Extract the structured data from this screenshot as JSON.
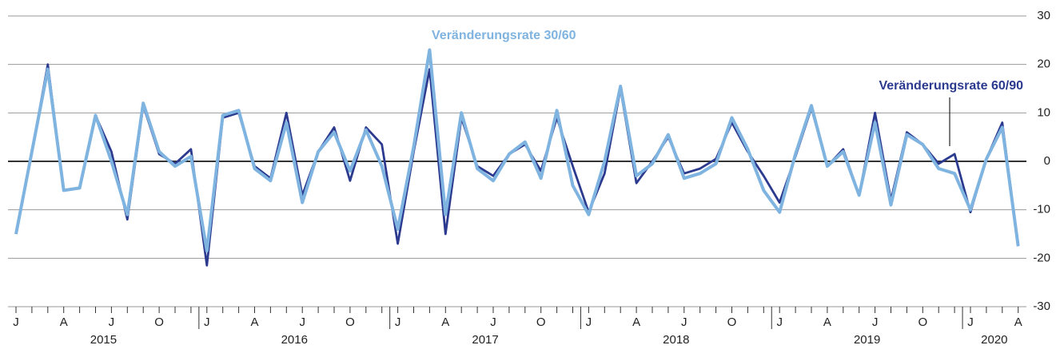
{
  "chart_data": {
    "type": "line",
    "categories": [
      "J",
      null,
      null,
      "A",
      null,
      null,
      "J",
      null,
      null,
      "O",
      null,
      null,
      "J",
      null,
      null,
      "A",
      null,
      null,
      "J",
      null,
      null,
      "O",
      null,
      null,
      "J",
      null,
      null,
      "A",
      null,
      null,
      "J",
      null,
      null,
      "O",
      null,
      null,
      "J",
      null,
      null,
      "A",
      null,
      null,
      "J",
      null,
      null,
      "O",
      null,
      null,
      "J",
      null,
      null,
      "A",
      null,
      null,
      "J",
      null,
      null,
      "O",
      null,
      null,
      "J",
      null,
      null,
      "A"
    ],
    "year_labels": [
      "2015",
      "2016",
      "2017",
      "2018",
      "2019",
      "2020"
    ],
    "series": [
      {
        "name": "Veränderungsrate 60/90",
        "color": "#2b3a8f",
        "values": [
          -15,
          2,
          20,
          -6,
          -5.5,
          9.5,
          2,
          -12,
          11.5,
          1.5,
          -0.5,
          2.5,
          -21.5,
          9,
          10,
          -1,
          -3.5,
          10,
          -7,
          2,
          7,
          -4,
          7,
          3.5,
          -17,
          2,
          19,
          -15,
          9,
          -1,
          -3,
          1.5,
          3.5,
          -2,
          9,
          -1,
          -10.5,
          -2.5,
          15,
          -4.5,
          0,
          5,
          -2.5,
          -1.5,
          0.5,
          8,
          2,
          -3,
          -8.5,
          1,
          11,
          -1,
          2.5,
          -7,
          10,
          -8,
          6,
          3.5,
          -0.5,
          1.5,
          -10.5,
          0.5,
          8,
          -17.5
        ]
      },
      {
        "name": "Veränderungsrate 30/60",
        "color": "#7fb3e0",
        "values": [
          -15,
          2,
          19,
          -6,
          -5.5,
          9.5,
          0,
          -11,
          12,
          2,
          -1,
          1,
          -18.5,
          9.5,
          10.5,
          -1.5,
          -4,
          8,
          -8.5,
          2,
          6,
          -2,
          6.5,
          -1,
          -14,
          3,
          23,
          -11,
          10,
          -1.5,
          -4,
          1.5,
          4,
          -3.5,
          10.5,
          -5,
          -11,
          0,
          15.5,
          -3,
          -0.5,
          5.5,
          -3.5,
          -2.5,
          -0.5,
          9,
          2.5,
          -6,
          -10.5,
          1.5,
          11.5,
          -1,
          2,
          -7,
          8,
          -9,
          5.5,
          3.5,
          -1.5,
          -2.5,
          -10,
          0.5,
          7,
          -17.5
        ]
      }
    ],
    "ylim": [
      -30,
      30
    ],
    "yticks": [
      -30,
      -20,
      -10,
      0,
      10,
      20,
      30
    ],
    "grid": true
  }
}
